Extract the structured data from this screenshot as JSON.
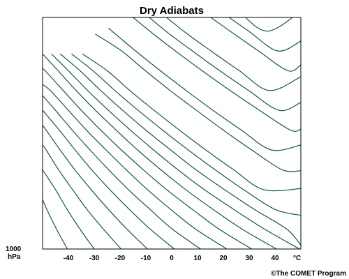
{
  "chart_data": {
    "type": "line",
    "title": "Dry Adiabats",
    "xlabel": "°C",
    "ylabel": "1000",
    "ylabel_unit": "hPa",
    "x_ticks": [
      -40,
      -30,
      -20,
      -10,
      0,
      10,
      20,
      30,
      40
    ],
    "xlim": [
      -50,
      50
    ],
    "series_color": "#0b5e3b",
    "series": [
      {
        "x": [
          -40.4,
          -44.6,
          -48.0,
          -50.0
        ],
        "y": [
          0.0,
          0.2,
          0.38,
          0.5
        ]
      },
      {
        "x": [
          -30.0,
          -35.5,
          -40.5,
          -45.0,
          -50.0
        ],
        "y": [
          0.0,
          0.2,
          0.4,
          0.6,
          0.8
        ]
      },
      {
        "x": [
          -19.6,
          -26.4,
          -32.8,
          -38.4,
          -43.8,
          -48.6,
          -50.0
        ],
        "y": [
          0.0,
          0.2,
          0.4,
          0.6,
          0.8,
          1.0,
          1.05
        ]
      },
      {
        "x": [
          -9.4,
          -17.3,
          -24.5,
          -31.2,
          -37.5,
          -43.2,
          -48.6,
          -50.0
        ],
        "y": [
          0.0,
          0.2,
          0.4,
          0.6,
          0.8,
          1.0,
          1.2,
          1.25
        ]
      },
      {
        "x": [
          1.0,
          -8.3,
          -16.4,
          -24.0,
          -31.0,
          -37.4,
          -43.5,
          -50.0
        ],
        "y": [
          0.0,
          0.2,
          0.4,
          0.6,
          0.8,
          1.0,
          1.2,
          1.4
        ]
      },
      {
        "x": [
          11.2,
          0.3,
          -8.4,
          -16.8,
          -24.4,
          -31.6,
          -38.5,
          -45.0,
          -50.0
        ],
        "y": [
          0.0,
          0.2,
          0.4,
          0.6,
          0.8,
          1.0,
          1.2,
          1.4,
          1.55
        ]
      },
      {
        "x": [
          21.4,
          9.3,
          -0.4,
          -9.4,
          -17.6,
          -25.4,
          -33.0,
          -40.0,
          -47.0,
          -50.0
        ],
        "y": [
          0.0,
          0.2,
          0.4,
          0.6,
          0.8,
          1.0,
          1.2,
          1.4,
          1.6,
          1.66
        ]
      },
      {
        "x": [
          31.0,
          18.4,
          8.0,
          -2.0,
          -11.0,
          -19.5,
          -27.5,
          -35.0,
          -42.0,
          -49.0,
          -50.0
        ],
        "y": [
          0.0,
          0.2,
          0.4,
          0.6,
          0.8,
          1.0,
          1.2,
          1.4,
          1.6,
          1.8,
          1.82
        ]
      },
      {
        "x": [
          40.6,
          27.3,
          16.0,
          5.4,
          -4.2,
          -13.2,
          -21.5,
          -29.5,
          -37.0,
          -44.0,
          -50.0
        ],
        "y": [
          0.0,
          0.2,
          0.4,
          0.6,
          0.8,
          1.0,
          1.2,
          1.4,
          1.6,
          1.8,
          1.97
        ]
      },
      {
        "x": [
          49.5,
          36.0,
          24.0,
          12.6,
          2.4,
          -7.0,
          -16.0,
          -24.5,
          -32.5,
          -40.0,
          -46.6
        ],
        "y": [
          0.0,
          0.2,
          0.4,
          0.6,
          0.8,
          1.0,
          1.2,
          1.4,
          1.6,
          1.8,
          1.97
        ]
      },
      {
        "x": [
          50.0,
          44.6,
          32.0,
          20.4,
          9.4,
          -0.4,
          -10.0,
          -19.0,
          -27.5,
          -35.5,
          -43.2
        ],
        "y": [
          0.04,
          0.2,
          0.4,
          0.6,
          0.8,
          1.0,
          1.2,
          1.4,
          1.6,
          1.8,
          1.97
        ]
      },
      {
        "x": [
          50.0,
          40.0,
          27.8,
          16.8,
          6.4,
          -3.5,
          -13.0,
          -22.0,
          -30.5,
          -38.8
        ],
        "y": [
          0.34,
          0.4,
          0.6,
          0.8,
          1.0,
          1.2,
          1.4,
          1.6,
          1.8,
          1.97
        ]
      },
      {
        "x": [
          50.0,
          35.5,
          24.0,
          13.2,
          3.0,
          -6.8,
          -16.2,
          -25.0,
          -34.6
        ],
        "y": [
          0.61,
          0.6,
          0.8,
          1.0,
          1.2,
          1.4,
          1.6,
          1.8,
          1.97
        ]
      },
      {
        "x": [
          50.0,
          42.8,
          31.0,
          20.0,
          9.6,
          -0.6,
          -10.2,
          -19.4,
          -29.6
        ],
        "y": [
          0.79,
          0.8,
          1.0,
          1.2,
          1.4,
          1.6,
          1.8,
          2.0,
          2.17
        ]
      },
      {
        "x": [
          50.0,
          38.6,
          27.0,
          16.0,
          5.6,
          -4.4,
          -14.0,
          -24.5
        ],
        "y": [
          1.05,
          1.0,
          1.2,
          1.4,
          1.6,
          1.8,
          2.0,
          2.23
        ]
      },
      {
        "x": [
          50.0,
          46.0,
          34.0,
          22.6,
          11.8,
          1.4,
          -8.5,
          -19.2
        ],
        "y": [
          1.21,
          1.2,
          1.4,
          1.6,
          1.8,
          2.0,
          2.2,
          2.43
        ]
      },
      {
        "x": [
          50.0,
          41.6,
          29.8,
          18.6,
          8.0,
          -2.3,
          -13.7
        ],
        "y": [
          1.48,
          1.4,
          1.6,
          1.8,
          2.0,
          2.2,
          2.45
        ]
      },
      {
        "x": [
          50.0,
          37.8,
          26.2,
          15.2,
          4.6,
          -7.2
        ],
        "y": [
          1.74,
          1.6,
          1.8,
          2.0,
          2.2,
          2.45
        ]
      },
      {
        "x": [
          50.0,
          45.0,
          33.6,
          22.6,
          12.0,
          0.4
        ],
        "y": [
          1.86,
          1.8,
          2.0,
          2.2,
          2.4,
          2.65
        ]
      },
      {
        "x": [
          50.0,
          41.0,
          29.8,
          19.0,
          8.2
        ],
        "y": [
          2.1,
          2.0,
          2.2,
          2.4,
          2.63
        ]
      },
      {
        "x": [
          50.0,
          37.0,
          26.0,
          18.0
        ],
        "y": [
          2.4,
          2.2,
          2.4,
          2.6
        ]
      }
    ]
  },
  "page": {
    "credit": "©The COMET Program"
  }
}
